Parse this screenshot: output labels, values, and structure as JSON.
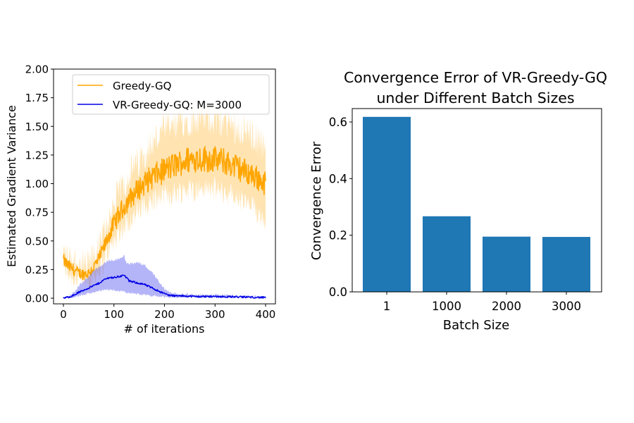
{
  "chart_data": [
    {
      "type": "line",
      "title": "",
      "xlabel": "# of iterations",
      "ylabel": "Estimated Gradient Variance",
      "xlim": [
        -18,
        418
      ],
      "ylim": [
        -0.05,
        2.0
      ],
      "xticks": [
        0,
        100,
        200,
        300,
        400
      ],
      "xtick_labels": [
        "0",
        "100",
        "200",
        "300",
        "400"
      ],
      "yticks": [
        0.0,
        0.25,
        0.5,
        0.75,
        1.0,
        1.25,
        1.5,
        1.75,
        2.0
      ],
      "ytick_labels": [
        "0.00",
        "0.25",
        "0.50",
        "0.75",
        "1.00",
        "1.25",
        "1.50",
        "1.75",
        "2.00"
      ],
      "grid": false,
      "legend_position": "top-right",
      "series": [
        {
          "name": "Greedy-GQ",
          "color": "#ffa500",
          "band_color": "#ffa500",
          "x": [
            0,
            10,
            20,
            30,
            40,
            50,
            60,
            70,
            80,
            90,
            100,
            110,
            120,
            130,
            140,
            150,
            160,
            170,
            180,
            190,
            200,
            220,
            240,
            260,
            280,
            300,
            320,
            340,
            360,
            380,
            400
          ],
          "mean": [
            0.33,
            0.28,
            0.25,
            0.22,
            0.21,
            0.22,
            0.27,
            0.34,
            0.44,
            0.55,
            0.65,
            0.73,
            0.8,
            0.86,
            0.91,
            0.96,
            1.0,
            1.04,
            1.07,
            1.09,
            1.12,
            1.16,
            1.2,
            1.22,
            1.22,
            1.21,
            1.19,
            1.15,
            1.11,
            1.06,
            1.0
          ],
          "lower": [
            0.3,
            0.22,
            0.18,
            0.16,
            0.16,
            0.16,
            0.19,
            0.24,
            0.32,
            0.42,
            0.5,
            0.58,
            0.63,
            0.68,
            0.72,
            0.76,
            0.8,
            0.83,
            0.86,
            0.88,
            0.9,
            0.92,
            0.95,
            0.95,
            0.96,
            0.95,
            0.92,
            0.88,
            0.83,
            0.77,
            0.7
          ],
          "upper": [
            0.4,
            0.34,
            0.32,
            0.29,
            0.28,
            0.29,
            0.35,
            0.44,
            0.57,
            0.7,
            0.82,
            0.92,
            1.0,
            1.08,
            1.14,
            1.2,
            1.27,
            1.32,
            1.37,
            1.42,
            1.47,
            1.5,
            1.55,
            1.57,
            1.58,
            1.57,
            1.54,
            1.5,
            1.46,
            1.4,
            1.3
          ],
          "noise": 0.07
        },
        {
          "name": "VR-Greedy-GQ: M=3000",
          "color": "#0000e6",
          "band_color": "#4444ee",
          "x": [
            0,
            10,
            20,
            30,
            40,
            50,
            60,
            70,
            80,
            90,
            100,
            110,
            120,
            125,
            130,
            140,
            150,
            160,
            170,
            180,
            190,
            200,
            210,
            220,
            240,
            260,
            300,
            340,
            380,
            400
          ],
          "mean": [
            0.0,
            0.01,
            0.025,
            0.05,
            0.07,
            0.09,
            0.11,
            0.13,
            0.16,
            0.18,
            0.18,
            0.19,
            0.2,
            0.18,
            0.15,
            0.14,
            0.13,
            0.12,
            0.1,
            0.08,
            0.06,
            0.04,
            0.025,
            0.02,
            0.02,
            0.015,
            0.015,
            0.012,
            0.008,
            0.005
          ],
          "lower": [
            0.0,
            0.005,
            0.01,
            0.02,
            0.03,
            0.04,
            0.05,
            0.06,
            0.07,
            0.075,
            0.07,
            0.065,
            0.06,
            0.05,
            0.045,
            0.04,
            0.035,
            0.03,
            0.025,
            0.02,
            0.015,
            0.01,
            0.008,
            0.008,
            0.008,
            0.008,
            0.008,
            0.006,
            0.004,
            0.002
          ],
          "upper": [
            0.0,
            0.015,
            0.05,
            0.1,
            0.15,
            0.19,
            0.24,
            0.27,
            0.3,
            0.33,
            0.33,
            0.34,
            0.38,
            0.3,
            0.3,
            0.31,
            0.31,
            0.29,
            0.25,
            0.2,
            0.14,
            0.08,
            0.05,
            0.04,
            0.035,
            0.03,
            0.028,
            0.022,
            0.015,
            0.01
          ],
          "noise": 0.008
        }
      ]
    },
    {
      "type": "bar",
      "title": "Convergence Error of VR-Greedy-GQ\nunder Different Batch Sizes",
      "title_lines": [
        "Convergence Error of VR-Greedy-GQ",
        "under Different Batch Sizes"
      ],
      "xlabel": "Batch Size",
      "ylabel": "Convergence Error",
      "categories": [
        "1",
        "1000",
        "2000",
        "3000"
      ],
      "values": [
        0.618,
        0.267,
        0.195,
        0.194
      ],
      "ylim": [
        0.0,
        0.65
      ],
      "yticks": [
        0.0,
        0.2,
        0.4,
        0.6
      ],
      "ytick_labels": [
        "0.0",
        "0.2",
        "0.4",
        "0.6"
      ],
      "bar_color": "#1f77b4",
      "grid": false
    }
  ]
}
